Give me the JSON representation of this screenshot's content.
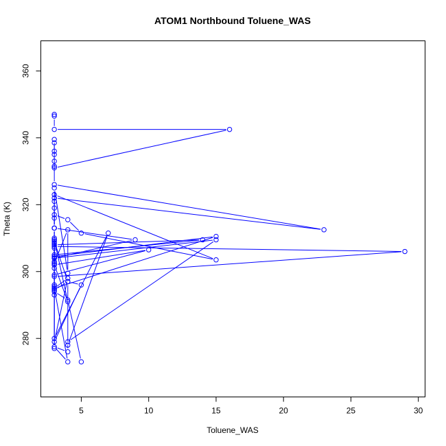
{
  "chart_data": {
    "type": "line",
    "title": "ATOM1 Northbound Toluene_WAS",
    "xlabel": "Toluene_WAS",
    "ylabel": "Theta (K)",
    "xlim": [
      2.0,
      30.5
    ],
    "ylim": [
      262.5,
      369.0
    ],
    "xticks": [
      5,
      10,
      15,
      20,
      25,
      30
    ],
    "yticks": [
      280,
      300,
      320,
      340,
      360
    ],
    "line_color": "#0000ff",
    "markers": "open-circle",
    "series": [
      {
        "x": [
          3,
          3,
          3,
          16,
          3,
          3,
          3,
          3,
          3,
          3,
          3,
          3,
          23,
          3,
          3,
          3,
          3,
          3,
          4,
          5,
          15,
          3,
          3,
          3,
          3,
          3,
          3,
          3,
          4,
          4,
          3,
          3,
          3,
          4,
          3,
          3,
          3,
          3,
          3,
          7,
          4,
          4,
          5,
          3,
          4,
          3,
          3,
          4,
          3,
          3,
          29,
          3,
          3,
          3,
          3,
          3,
          10,
          3,
          3,
          3,
          3,
          3,
          3,
          15,
          3,
          3,
          9,
          3,
          3,
          3,
          14,
          3,
          3,
          15,
          4,
          4,
          3,
          4,
          3,
          3,
          4,
          5
        ],
        "y": [
          347,
          346.5,
          342.5,
          342.5,
          331,
          331.5,
          333,
          335,
          336,
          338.5,
          339.5,
          326,
          312.5,
          322,
          321,
          319,
          313,
          317,
          315.5,
          311.5,
          303.5,
          323,
          316,
          313,
          310,
          308.5,
          304.5,
          302.5,
          312.5,
          299.5,
          325,
          313,
          309.5,
          291,
          302,
          307,
          303,
          301,
          280,
          311.5,
          278,
          297,
          296,
          279,
          298,
          295,
          294.5,
          297,
          309,
          307.5,
          306,
          298.5,
          309.5,
          304,
          302.5,
          302,
          306.5,
          299,
          296,
          294.5,
          293,
          295.5,
          295,
          310.5,
          304.5,
          304,
          309.5,
          313,
          277,
          305,
          309.5,
          308,
          304,
          309.5,
          279,
          276,
          277.5,
          273,
          295,
          294,
          291.5,
          273
        ]
      }
    ]
  }
}
